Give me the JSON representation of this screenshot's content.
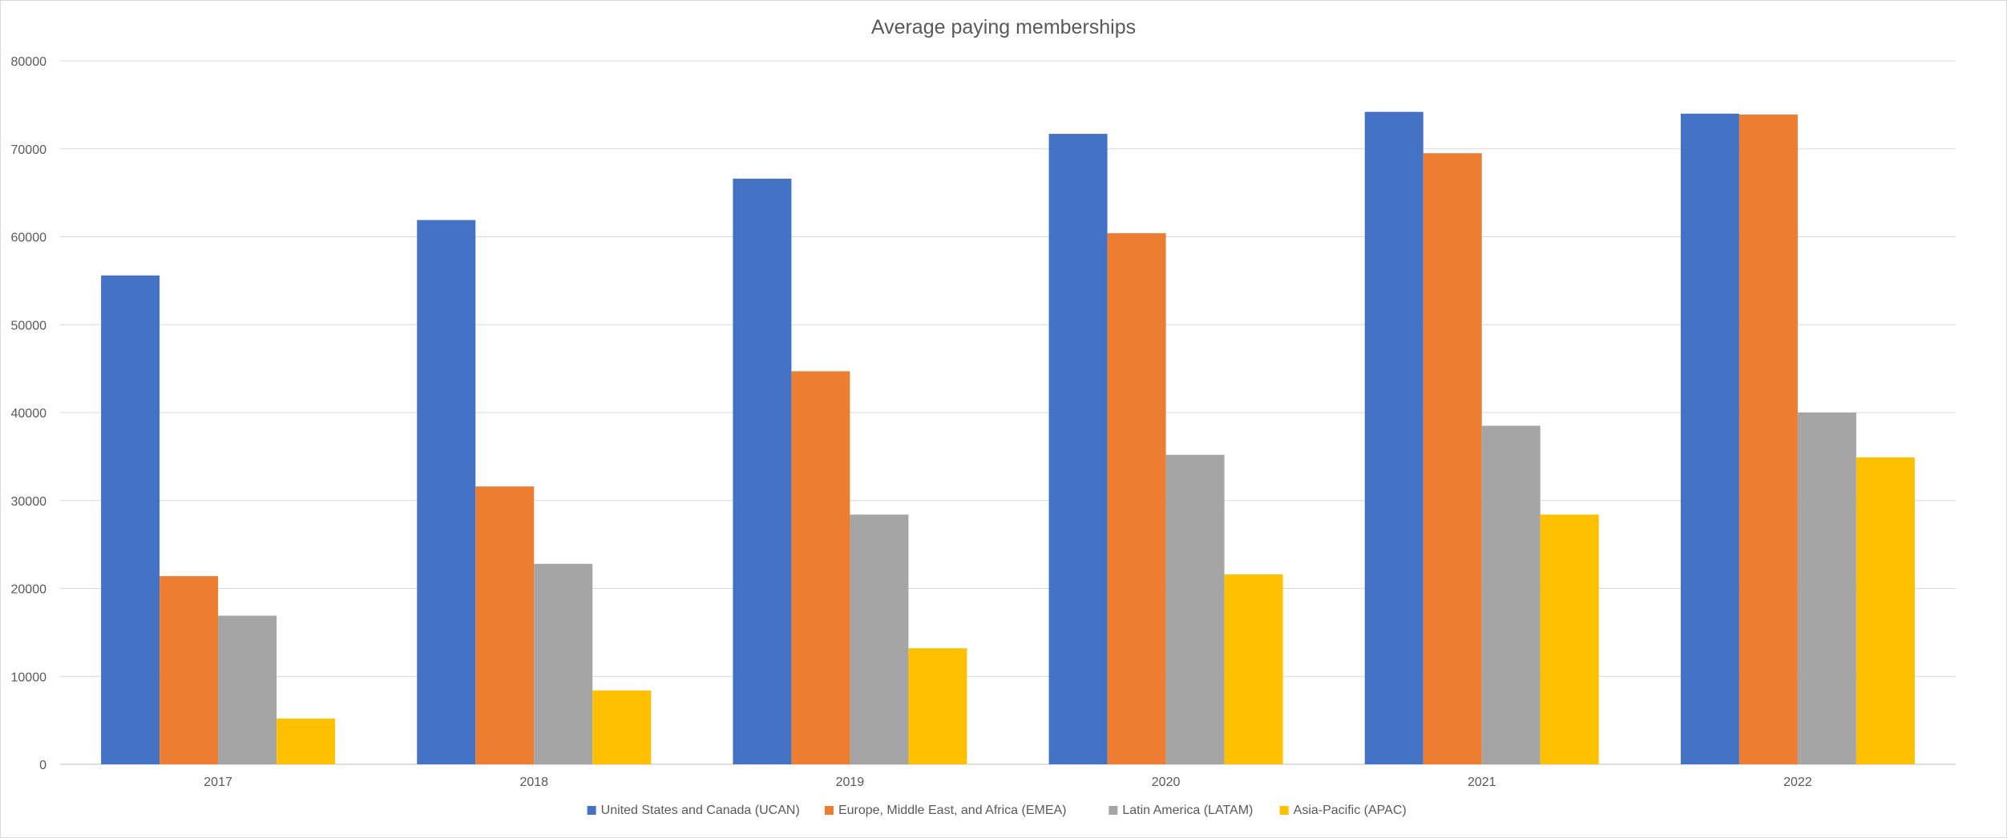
{
  "chart_data": {
    "type": "bar",
    "title": "Average paying memberships",
    "xlabel": "",
    "ylabel": "",
    "categories": [
      "2017",
      "2018",
      "2019",
      "2020",
      "2021",
      "2022"
    ],
    "ylim": [
      0,
      80000
    ],
    "yticks": [
      "0",
      "10000",
      "20000",
      "30000",
      "40000",
      "50000",
      "60000",
      "70000",
      "80000"
    ],
    "grid": true,
    "legend_position": "bottom",
    "series": [
      {
        "name": "United States and Canada (UCAN)",
        "color": "#4472C4",
        "values": [
          55600,
          61900,
          66600,
          71700,
          74200,
          74000
        ]
      },
      {
        "name": "Europe, Middle East, and Africa (EMEA)",
        "color": "#ED7D31",
        "values": [
          21400,
          31600,
          44700,
          60400,
          69500,
          73900
        ]
      },
      {
        "name": "Latin America (LATAM)",
        "color": "#A5A5A5",
        "values": [
          16900,
          22800,
          28400,
          35200,
          38500,
          40000
        ]
      },
      {
        "name": "Asia-Pacific (APAC)",
        "color": "#FFC000",
        "values": [
          5200,
          8400,
          13200,
          21600,
          28400,
          34900
        ]
      }
    ]
  }
}
